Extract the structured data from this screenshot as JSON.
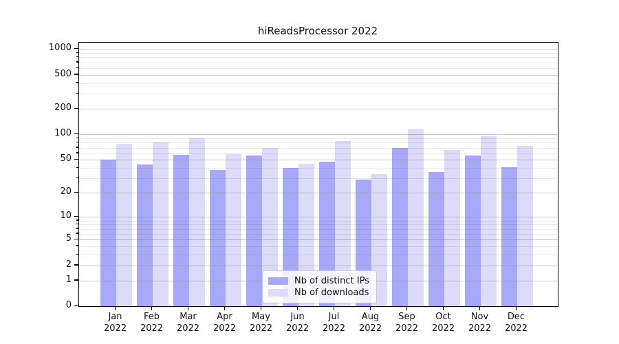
{
  "chart_data": {
    "type": "bar",
    "title": "hiReadsProcessor 2022",
    "categories": [
      "Jan",
      "Feb",
      "Mar",
      "Apr",
      "May",
      "Jun",
      "Jul",
      "Aug",
      "Sep",
      "Oct",
      "Nov",
      "Dec"
    ],
    "category_year": "2022",
    "series": [
      {
        "name": "Nb of distinct IPs",
        "color": "#a8a8f8",
        "values": [
          50,
          44,
          57,
          38,
          56,
          40,
          48,
          29,
          70,
          36,
          56,
          41
        ]
      },
      {
        "name": "Nb of downloads",
        "color": "#dcdcfa",
        "values": [
          77,
          80,
          90,
          59,
          70,
          45,
          84,
          34,
          115,
          66,
          96,
          73
        ]
      }
    ],
    "xlabel": "",
    "ylabel": "",
    "yscale": "log1p",
    "ylim": [
      0,
      1200
    ],
    "ytick_values": [
      1000,
      500,
      200,
      100,
      50,
      20,
      10,
      5,
      2,
      1,
      0
    ],
    "ytick_labels": [
      "1000",
      "500",
      "200",
      "100",
      "50",
      "20",
      "10",
      "5",
      "2",
      "1",
      "0"
    ],
    "minor_gridline_values": [
      3,
      4,
      6,
      7,
      8,
      9,
      30,
      40,
      60,
      70,
      80,
      90,
      300,
      400,
      600,
      700,
      800,
      900
    ],
    "grid": true,
    "legend_position": "lower-center"
  },
  "colors": {
    "background": "#ffffff",
    "axis_frame": "#000000",
    "major_grid": "#cccccc",
    "minor_grid": "#ebebeb",
    "legend_border": "#cccccc"
  }
}
